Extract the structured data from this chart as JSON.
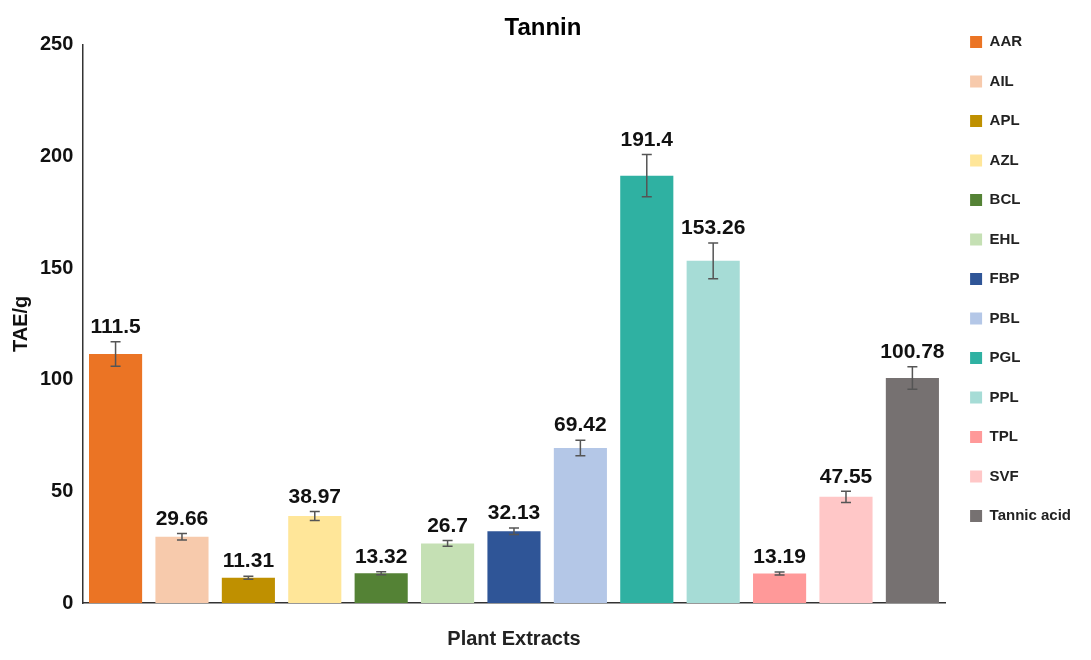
{
  "chart_data": {
    "type": "bar",
    "title": "Tannin",
    "xlabel": "Plant Extracts",
    "ylabel": "TAE/g",
    "categories": [
      null,
      null,
      null,
      null,
      null,
      null,
      null,
      null,
      null,
      null,
      null,
      null,
      null
    ],
    "series": [
      {
        "name": "AAR",
        "color": "#eb7424",
        "values": [
          111.5,
          null,
          null,
          null,
          null,
          null,
          null,
          null,
          null,
          null,
          null,
          null,
          null
        ],
        "errors": [
          5.5,
          null,
          null,
          null,
          null,
          null,
          null,
          null,
          null,
          null,
          null,
          null,
          null
        ]
      },
      {
        "name": "AIL",
        "color": "#f7caac",
        "values": [
          null,
          29.66,
          null,
          null,
          null,
          null,
          null,
          null,
          null,
          null,
          null,
          null,
          null
        ],
        "errors": [
          null,
          1.5,
          null,
          null,
          null,
          null,
          null,
          null,
          null,
          null,
          null,
          null,
          null
        ]
      },
      {
        "name": "APL",
        "color": "#bf9000",
        "values": [
          null,
          null,
          11.31,
          null,
          null,
          null,
          null,
          null,
          null,
          null,
          null,
          null,
          null
        ],
        "errors": [
          null,
          null,
          0.7,
          null,
          null,
          null,
          null,
          null,
          null,
          null,
          null,
          null,
          null
        ]
      },
      {
        "name": "AZL",
        "color": "#ffe699",
        "values": [
          null,
          null,
          null,
          38.97,
          null,
          null,
          null,
          null,
          null,
          null,
          null,
          null,
          null
        ],
        "errors": [
          null,
          null,
          null,
          2,
          null,
          null,
          null,
          null,
          null,
          null,
          null,
          null,
          null
        ]
      },
      {
        "name": "BCL",
        "color": "#548235",
        "values": [
          null,
          null,
          null,
          null,
          13.32,
          null,
          null,
          null,
          null,
          null,
          null,
          null,
          null
        ],
        "errors": [
          null,
          null,
          null,
          null,
          0.7,
          null,
          null,
          null,
          null,
          null,
          null,
          null,
          null
        ]
      },
      {
        "name": "EHL",
        "color": "#c5e0b4",
        "values": [
          null,
          null,
          null,
          null,
          null,
          26.7,
          null,
          null,
          null,
          null,
          null,
          null,
          null
        ],
        "errors": [
          null,
          null,
          null,
          null,
          null,
          1.3,
          null,
          null,
          null,
          null,
          null,
          null,
          null
        ]
      },
      {
        "name": "FBP",
        "color": "#2f5597",
        "values": [
          null,
          null,
          null,
          null,
          null,
          null,
          32.13,
          null,
          null,
          null,
          null,
          null,
          null
        ],
        "errors": [
          null,
          null,
          null,
          null,
          null,
          null,
          1.5,
          null,
          null,
          null,
          null,
          null,
          null
        ]
      },
      {
        "name": "PBL",
        "color": "#b4c7e7",
        "values": [
          null,
          null,
          null,
          null,
          null,
          null,
          null,
          69.42,
          null,
          null,
          null,
          null,
          null
        ],
        "errors": [
          null,
          null,
          null,
          null,
          null,
          null,
          null,
          3.5,
          null,
          null,
          null,
          null,
          null
        ]
      },
      {
        "name": "PGL",
        "color": "#2fb1a2",
        "values": [
          null,
          null,
          null,
          null,
          null,
          null,
          null,
          null,
          191.4,
          null,
          null,
          null,
          null
        ],
        "errors": [
          null,
          null,
          null,
          null,
          null,
          null,
          null,
          null,
          9.5,
          null,
          null,
          null,
          null
        ]
      },
      {
        "name": "PPL",
        "color": "#a6dcd6",
        "values": [
          null,
          null,
          null,
          null,
          null,
          null,
          null,
          null,
          null,
          153.26,
          null,
          null,
          null
        ],
        "errors": [
          null,
          null,
          null,
          null,
          null,
          null,
          null,
          null,
          null,
          8,
          null,
          null,
          null
        ]
      },
      {
        "name": "TPL",
        "color": "#ff9999",
        "values": [
          null,
          null,
          null,
          null,
          null,
          null,
          null,
          null,
          null,
          null,
          13.19,
          null,
          null
        ],
        "errors": [
          null,
          null,
          null,
          null,
          null,
          null,
          null,
          null,
          null,
          null,
          0.7,
          null,
          null
        ]
      },
      {
        "name": "SVF",
        "color": "#ffc7c7",
        "values": [
          null,
          null,
          null,
          null,
          null,
          null,
          null,
          null,
          null,
          null,
          null,
          47.55,
          null
        ],
        "errors": [
          null,
          null,
          null,
          null,
          null,
          null,
          null,
          null,
          null,
          null,
          null,
          2.5,
          null
        ]
      },
      {
        "name": "Tannic acid",
        "color": "#767171",
        "values": [
          null,
          null,
          null,
          null,
          null,
          null,
          null,
          null,
          null,
          null,
          null,
          null,
          100.78
        ],
        "errors": [
          null,
          null,
          null,
          null,
          null,
          null,
          null,
          null,
          null,
          null,
          null,
          null,
          5
        ]
      }
    ],
    "ylim": [
      0,
      250
    ],
    "yticks": [
      0,
      50,
      100,
      150,
      200,
      250
    ],
    "grid": false,
    "legend": "right",
    "data_labels": true
  }
}
